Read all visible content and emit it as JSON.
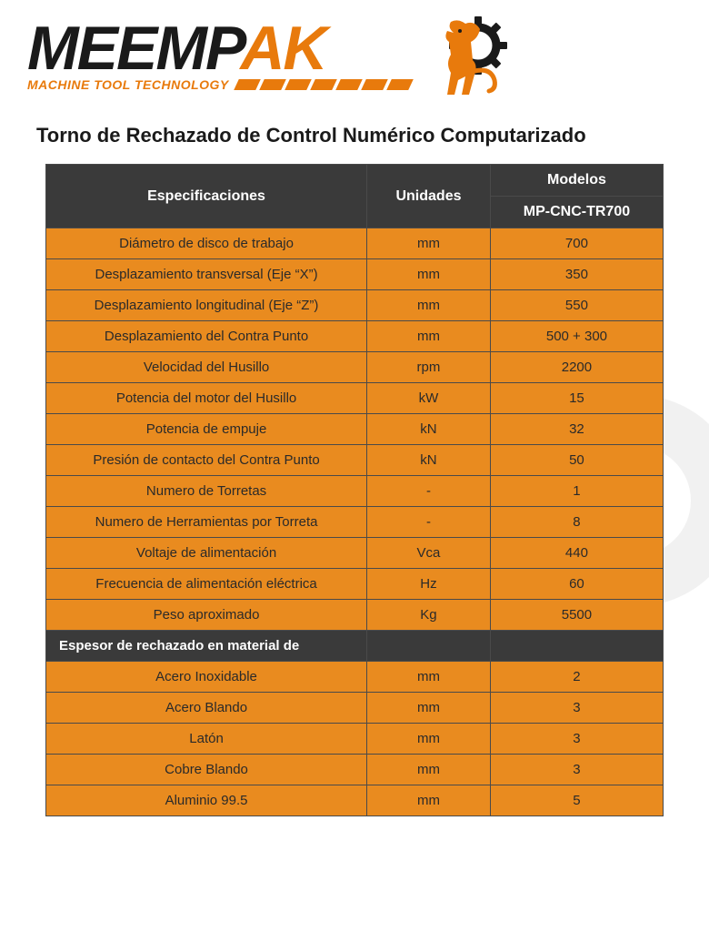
{
  "brand": {
    "prefix": "MEEMP",
    "suffix": "AK",
    "tagline": "MACHINE TOOL TECHNOLOGY"
  },
  "title": "Torno de Rechazado de Control Numérico Computarizado",
  "colors": {
    "orange": "#e87a0c",
    "cell_bg": "#e98b1f",
    "header_bg": "#3a3a3a",
    "border": "#4a4a4a",
    "text_dark": "#2a2a2a",
    "text_light": "#ffffff"
  },
  "table": {
    "headers": {
      "spec": "Especificaciones",
      "unit": "Unidades",
      "models": "Modelos",
      "model_name": "MP-CNC-TR700"
    },
    "rows": [
      {
        "spec": "Diámetro de disco de trabajo",
        "unit": "mm",
        "value": "700"
      },
      {
        "spec": "Desplazamiento transversal (Eje “X”)",
        "unit": "mm",
        "value": "350"
      },
      {
        "spec": "Desplazamiento longitudinal (Eje “Z”)",
        "unit": "mm",
        "value": "550"
      },
      {
        "spec": "Desplazamiento del Contra Punto",
        "unit": "mm",
        "value": "500 + 300"
      },
      {
        "spec": "Velocidad del Husillo",
        "unit": "rpm",
        "value": "2200"
      },
      {
        "spec": "Potencia del motor del Husillo",
        "unit": "kW",
        "value": "15"
      },
      {
        "spec": "Potencia de empuje",
        "unit": "kN",
        "value": "32"
      },
      {
        "spec": "Presión de contacto del Contra Punto",
        "unit": "kN",
        "value": "50"
      },
      {
        "spec": "Numero de Torretas",
        "unit": "-",
        "value": "1"
      },
      {
        "spec": "Numero de Herramientas por Torreta",
        "unit": "-",
        "value": "8"
      },
      {
        "spec": "Voltaje de alimentación",
        "unit": "Vca",
        "value": "440"
      },
      {
        "spec": "Frecuencia de alimentación eléctrica",
        "unit": "Hz",
        "value": "60"
      },
      {
        "spec": "Peso aproximado",
        "unit": "Kg",
        "value": "5500"
      }
    ],
    "subheader": "Espesor de rechazado en material de",
    "material_rows": [
      {
        "spec": "Acero Inoxidable",
        "unit": "mm",
        "value": "2"
      },
      {
        "spec": "Acero Blando",
        "unit": "mm",
        "value": "3"
      },
      {
        "spec": "Latón",
        "unit": "mm",
        "value": "3"
      },
      {
        "spec": "Cobre Blando",
        "unit": "mm",
        "value": "3"
      },
      {
        "spec": "Aluminio 99.5",
        "unit": "mm",
        "value": "5"
      }
    ]
  }
}
